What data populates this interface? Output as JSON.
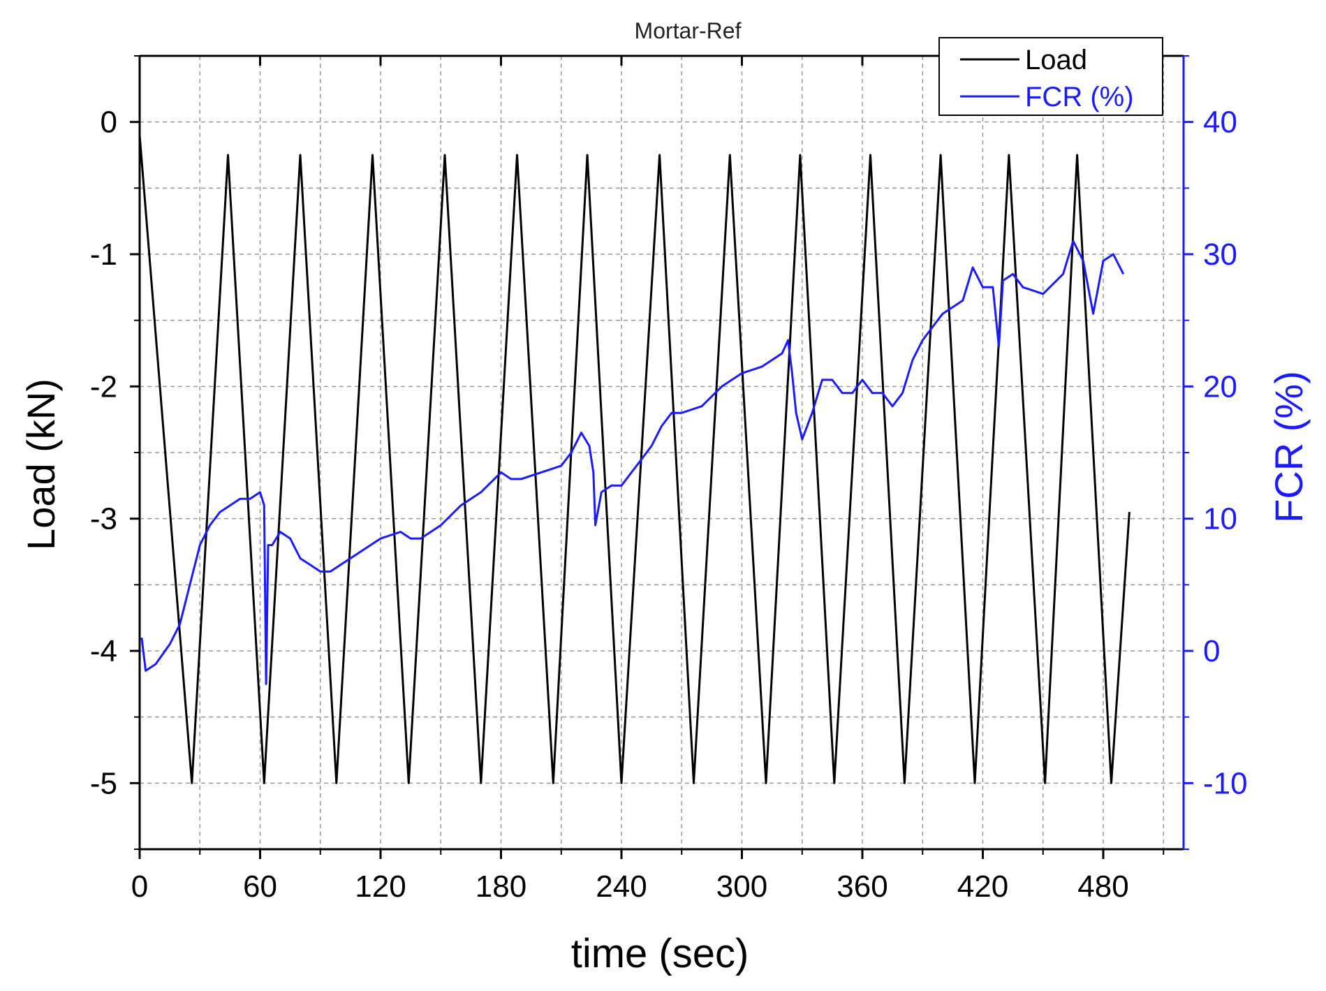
{
  "chart_data": {
    "type": "line",
    "title": "Mortar-Ref",
    "xlabel": "time (sec)",
    "ylabel": "Load (kN)",
    "y2label": "FCR (%)",
    "xlim": [
      0,
      520
    ],
    "ylim": [
      -5.5,
      0.5
    ],
    "y2lim": [
      -15,
      45
    ],
    "x_ticks": [
      "0",
      "60",
      "120",
      "180",
      "240",
      "300",
      "360",
      "420",
      "480"
    ],
    "y_ticks": [
      "0",
      "-1",
      "-2",
      "-3",
      "-4",
      "-5"
    ],
    "y2_ticks": [
      "40",
      "30",
      "20",
      "10",
      "0",
      "-10"
    ],
    "grid": true,
    "legend_position": "top-right",
    "colors": {
      "load": "#000000",
      "fcr": "#1a1aff",
      "right_axis": "#1a1aff",
      "grid": "#9a9a9a"
    },
    "series": [
      {
        "name": "Load",
        "axis": "left",
        "x": [
          0,
          26,
          44,
          62,
          80,
          98,
          116,
          134,
          152,
          170,
          188,
          206,
          223,
          240,
          259,
          276,
          294,
          312,
          329,
          346,
          364,
          381,
          399,
          416,
          433,
          451,
          467,
          484,
          493
        ],
        "values": [
          -0.1,
          -5.0,
          -0.25,
          -5.0,
          -0.25,
          -5.0,
          -0.25,
          -5.0,
          -0.25,
          -5.0,
          -0.25,
          -5.0,
          -0.25,
          -5.0,
          -0.25,
          -5.0,
          -0.25,
          -5.0,
          -0.25,
          -5.0,
          -0.25,
          -5.0,
          -0.25,
          -5.0,
          -0.25,
          -5.0,
          -0.25,
          -5.0,
          -2.95
        ]
      },
      {
        "name": "FCR (%)",
        "axis": "right",
        "x": [
          1,
          3,
          8,
          15,
          20,
          25,
          30,
          35,
          40,
          45,
          50,
          55,
          60,
          62,
          63,
          64,
          66,
          70,
          75,
          80,
          85,
          90,
          95,
          100,
          110,
          120,
          130,
          135,
          140,
          150,
          160,
          170,
          180,
          185,
          190,
          200,
          210,
          215,
          220,
          224,
          226,
          227,
          230,
          235,
          240,
          245,
          250,
          255,
          260,
          265,
          270,
          280,
          290,
          300,
          310,
          320,
          323,
          325,
          327,
          330,
          335,
          340,
          345,
          350,
          355,
          360,
          365,
          370,
          375,
          380,
          385,
          390,
          395,
          400,
          410,
          415,
          420,
          425,
          428,
          430,
          435,
          440,
          450,
          460,
          465,
          470,
          475,
          480,
          485,
          490
        ],
        "values": [
          1,
          -1.5,
          -1,
          0.5,
          2,
          5,
          8,
          9.5,
          10.5,
          11,
          11.5,
          11.5,
          12,
          11,
          -2.5,
          8,
          8,
          9,
          8.5,
          7,
          6.5,
          6,
          6,
          6.5,
          7.5,
          8.5,
          9,
          8.5,
          8.5,
          9.5,
          11,
          12,
          13.5,
          13,
          13,
          13.5,
          14,
          15,
          16.5,
          15.5,
          13.5,
          9.5,
          12,
          12.5,
          12.5,
          13.5,
          14.5,
          15.5,
          17,
          18,
          18,
          18.5,
          20,
          21,
          21.5,
          22.5,
          23.5,
          21,
          18,
          16,
          18,
          20.5,
          20.5,
          19.5,
          19.5,
          20.5,
          19.5,
          19.5,
          18.5,
          19.5,
          22,
          23.5,
          24.5,
          25.5,
          26.5,
          29,
          27.5,
          27.5,
          23,
          28,
          28.5,
          27.5,
          27,
          28.5,
          31,
          29.5,
          25.5,
          29.5,
          30,
          28.5
        ]
      }
    ]
  }
}
